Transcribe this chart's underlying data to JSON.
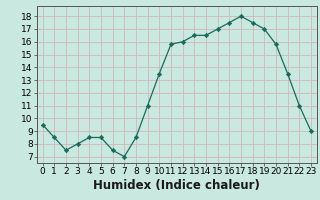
{
  "x": [
    0,
    1,
    2,
    3,
    4,
    5,
    6,
    7,
    8,
    9,
    10,
    11,
    12,
    13,
    14,
    15,
    16,
    17,
    18,
    19,
    20,
    21,
    22,
    23
  ],
  "y": [
    9.5,
    8.5,
    7.5,
    8.0,
    8.5,
    8.5,
    7.5,
    7.0,
    8.5,
    11.0,
    13.5,
    15.8,
    16.0,
    16.5,
    16.5,
    17.0,
    17.5,
    18.0,
    17.5,
    17.0,
    15.8,
    13.5,
    11.0,
    9.0
  ],
  "line_color": "#1a6b5a",
  "marker_color": "#1a6b5a",
  "bg_color": "#c8e8e0",
  "grid_color": "#d0b8b8",
  "xlabel": "Humidex (Indice chaleur)",
  "ylim": [
    6.5,
    18.8
  ],
  "xlim": [
    -0.5,
    23.5
  ],
  "yticks": [
    7,
    8,
    9,
    10,
    11,
    12,
    13,
    14,
    15,
    16,
    17,
    18
  ],
  "xticks": [
    0,
    1,
    2,
    3,
    4,
    5,
    6,
    7,
    8,
    9,
    10,
    11,
    12,
    13,
    14,
    15,
    16,
    17,
    18,
    19,
    20,
    21,
    22,
    23
  ],
  "tick_fontsize": 6.5,
  "xlabel_fontsize": 8.5,
  "spine_color": "#555555"
}
